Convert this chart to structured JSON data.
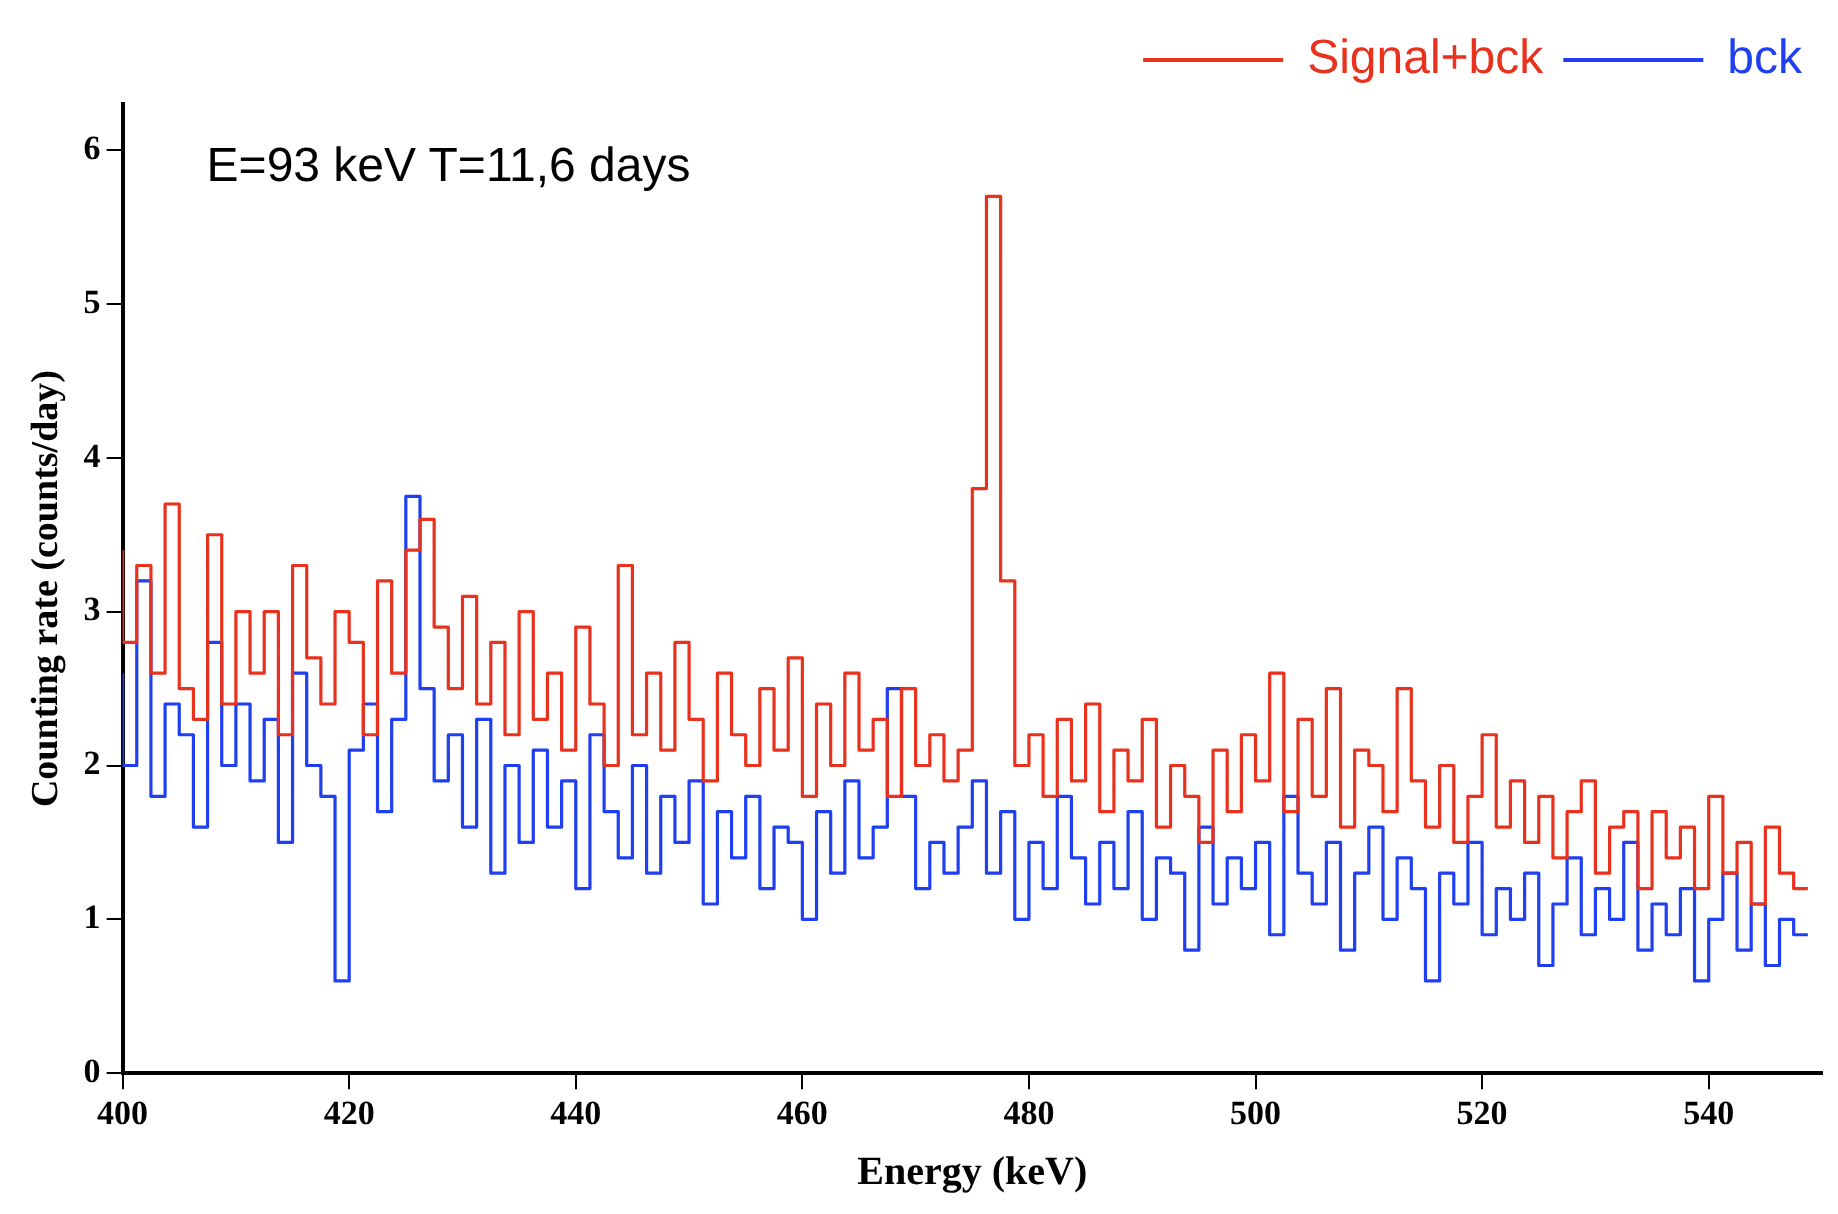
{
  "chart_data": {
    "type": "step",
    "xlabel": "Energy (keV)",
    "ylabel": "Counting rate (counts/day)",
    "annotations": [
      "E=93 keV T=11,6 days"
    ],
    "x": [
      400,
      401.25,
      402.5,
      403.75,
      405,
      406.25,
      407.5,
      408.75,
      410,
      411.25,
      412.5,
      413.75,
      415,
      416.25,
      417.5,
      418.75,
      420,
      421.25,
      422.5,
      423.75,
      425,
      426.25,
      427.5,
      428.75,
      430,
      431.25,
      432.5,
      433.75,
      435,
      436.25,
      437.5,
      438.75,
      440,
      441.25,
      442.5,
      443.75,
      445,
      446.25,
      447.5,
      448.75,
      450,
      451.25,
      452.5,
      453.75,
      455,
      456.25,
      457.5,
      458.75,
      460,
      461.25,
      462.5,
      463.75,
      465,
      466.25,
      467.5,
      468.75,
      470,
      471.25,
      472.5,
      473.75,
      475,
      476.25,
      477.5,
      478.75,
      480,
      481.25,
      482.5,
      483.75,
      485,
      486.25,
      487.5,
      488.75,
      490,
      491.25,
      492.5,
      493.75,
      495,
      496.25,
      497.5,
      498.75,
      500,
      501.25,
      502.5,
      503.75,
      505,
      506.25,
      507.5,
      508.75,
      510,
      511.25,
      512.5,
      513.75,
      515,
      516.25,
      517.5,
      518.75,
      520,
      521.25,
      522.5,
      523.75,
      525,
      526.25,
      527.5,
      528.75,
      530,
      531.25,
      532.5,
      533.75,
      535,
      536.25,
      537.5,
      538.75,
      540,
      541.25,
      542.5,
      543.75,
      545,
      546.25,
      547.5,
      548.75
    ],
    "series": [
      {
        "name": "Signal+bck",
        "color": "#e8321e",
        "values": [
          3.4,
          2.8,
          3.3,
          2.6,
          3.7,
          2.5,
          2.3,
          3.5,
          2.4,
          3.0,
          2.6,
          3.0,
          2.2,
          3.3,
          2.7,
          2.4,
          3.0,
          2.8,
          2.2,
          3.2,
          2.6,
          3.4,
          3.6,
          2.9,
          2.5,
          3.1,
          2.4,
          2.8,
          2.2,
          3.0,
          2.3,
          2.6,
          2.1,
          2.9,
          2.4,
          2.0,
          3.3,
          2.2,
          2.6,
          2.1,
          2.8,
          2.3,
          1.9,
          2.6,
          2.2,
          2.0,
          2.5,
          2.1,
          2.7,
          1.8,
          2.4,
          2.0,
          2.6,
          2.1,
          2.3,
          1.8,
          2.5,
          2.0,
          2.2,
          1.9,
          2.1,
          3.8,
          5.7,
          3.2,
          2.0,
          2.2,
          1.8,
          2.3,
          1.9,
          2.4,
          1.7,
          2.1,
          1.9,
          2.3,
          1.6,
          2.0,
          1.8,
          1.5,
          2.1,
          1.7,
          2.2,
          1.9,
          2.6,
          1.7,
          2.3,
          1.8,
          2.5,
          1.6,
          2.1,
          2.0,
          1.7,
          2.5,
          1.9,
          1.6,
          2.0,
          1.5,
          1.8,
          2.2,
          1.6,
          1.9,
          1.5,
          1.8,
          1.4,
          1.7,
          1.9,
          1.3,
          1.6,
          1.7,
          1.2,
          1.7,
          1.4,
          1.6,
          1.2,
          1.8,
          1.3,
          1.5,
          1.1,
          1.6,
          1.3,
          1.2
        ]
      },
      {
        "name": "bck",
        "color": "#1f3ff0",
        "values": [
          2.6,
          2.0,
          3.2,
          1.8,
          2.4,
          2.2,
          1.6,
          2.8,
          2.0,
          2.4,
          1.9,
          2.3,
          1.5,
          2.6,
          2.0,
          1.8,
          0.6,
          2.1,
          2.4,
          1.7,
          2.3,
          3.75,
          2.5,
          1.9,
          2.2,
          1.6,
          2.3,
          1.3,
          2.0,
          1.5,
          2.1,
          1.6,
          1.9,
          1.2,
          2.2,
          1.7,
          1.4,
          2.0,
          1.3,
          1.8,
          1.5,
          1.9,
          1.1,
          1.7,
          1.4,
          1.8,
          1.2,
          1.6,
          1.5,
          1.0,
          1.7,
          1.3,
          1.9,
          1.4,
          1.6,
          2.5,
          1.8,
          1.2,
          1.5,
          1.3,
          1.6,
          1.9,
          1.3,
          1.7,
          1.0,
          1.5,
          1.2,
          1.8,
          1.4,
          1.1,
          1.5,
          1.2,
          1.7,
          1.0,
          1.4,
          1.3,
          0.8,
          1.6,
          1.1,
          1.4,
          1.2,
          1.5,
          0.9,
          1.8,
          1.3,
          1.1,
          1.5,
          0.8,
          1.3,
          1.6,
          1.0,
          1.4,
          1.2,
          0.6,
          1.3,
          1.1,
          1.5,
          0.9,
          1.2,
          1.0,
          1.3,
          0.7,
          1.1,
          1.4,
          0.9,
          1.2,
          1.0,
          1.5,
          0.8,
          1.1,
          0.9,
          1.2,
          0.6,
          1.0,
          1.3,
          0.8,
          1.1,
          0.7,
          1.0,
          0.9
        ]
      }
    ],
    "xlim": [
      400,
      550
    ],
    "xticks": [
      400,
      420,
      440,
      460,
      480,
      500,
      520,
      540
    ],
    "ylim": [
      0,
      6.3
    ],
    "yticks": [
      0,
      1,
      2,
      3,
      4,
      5,
      6
    ],
    "legend": "top right"
  }
}
